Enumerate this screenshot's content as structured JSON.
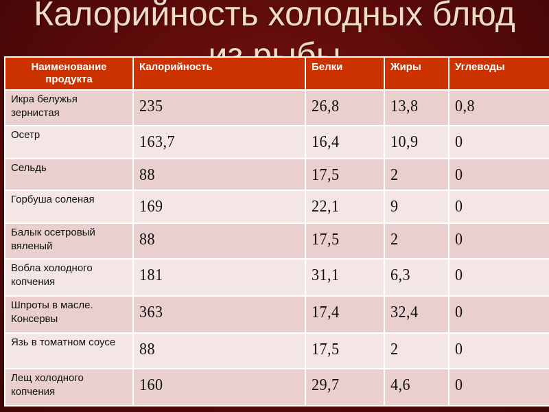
{
  "title_line1": "Калорийность холодных блюд",
  "title_line2": "из рыбы",
  "table": {
    "headers": [
      "Наименование продукта",
      "Калорийность",
      "Белки",
      "Жиры",
      "Углеводы"
    ],
    "rows": [
      {
        "name": "Икра белужья зернистая",
        "kcal": "235",
        "protein": "26,8",
        "fat": "13,8",
        "carbs": "0,8"
      },
      {
        "name": "Осетр",
        "kcal": "163,7",
        "protein": "16,4",
        "fat": "10,9",
        "carbs": "0"
      },
      {
        "name": "Сельдь",
        "kcal": "88",
        "protein": "17,5",
        "fat": "2",
        "carbs": "0"
      },
      {
        "name": "Горбуша соленая",
        "kcal": "169",
        "protein": "22,1",
        "fat": "9",
        "carbs": "0"
      },
      {
        "name": "Балык осетровый вяленый",
        "kcal": "88",
        "protein": "17,5",
        "fat": "2",
        "carbs": "0"
      },
      {
        "name": "Вобла холодного копчения",
        "kcal": "181",
        "protein": "31,1",
        "fat": "6,3",
        "carbs": "0"
      },
      {
        "name": "Шпроты в масле. Консервы",
        "kcal": "363",
        "protein": "17,4",
        "fat": "32,4",
        "carbs": "0"
      },
      {
        "name": "Язь в томатном соусе",
        "kcal": "88",
        "protein": "17,5",
        "fat": "2",
        "carbs": "0"
      },
      {
        "name": "Лещ холодного копчения",
        "kcal": "160",
        "protein": "29,7",
        "fat": "4,6",
        "carbs": "0"
      }
    ]
  }
}
